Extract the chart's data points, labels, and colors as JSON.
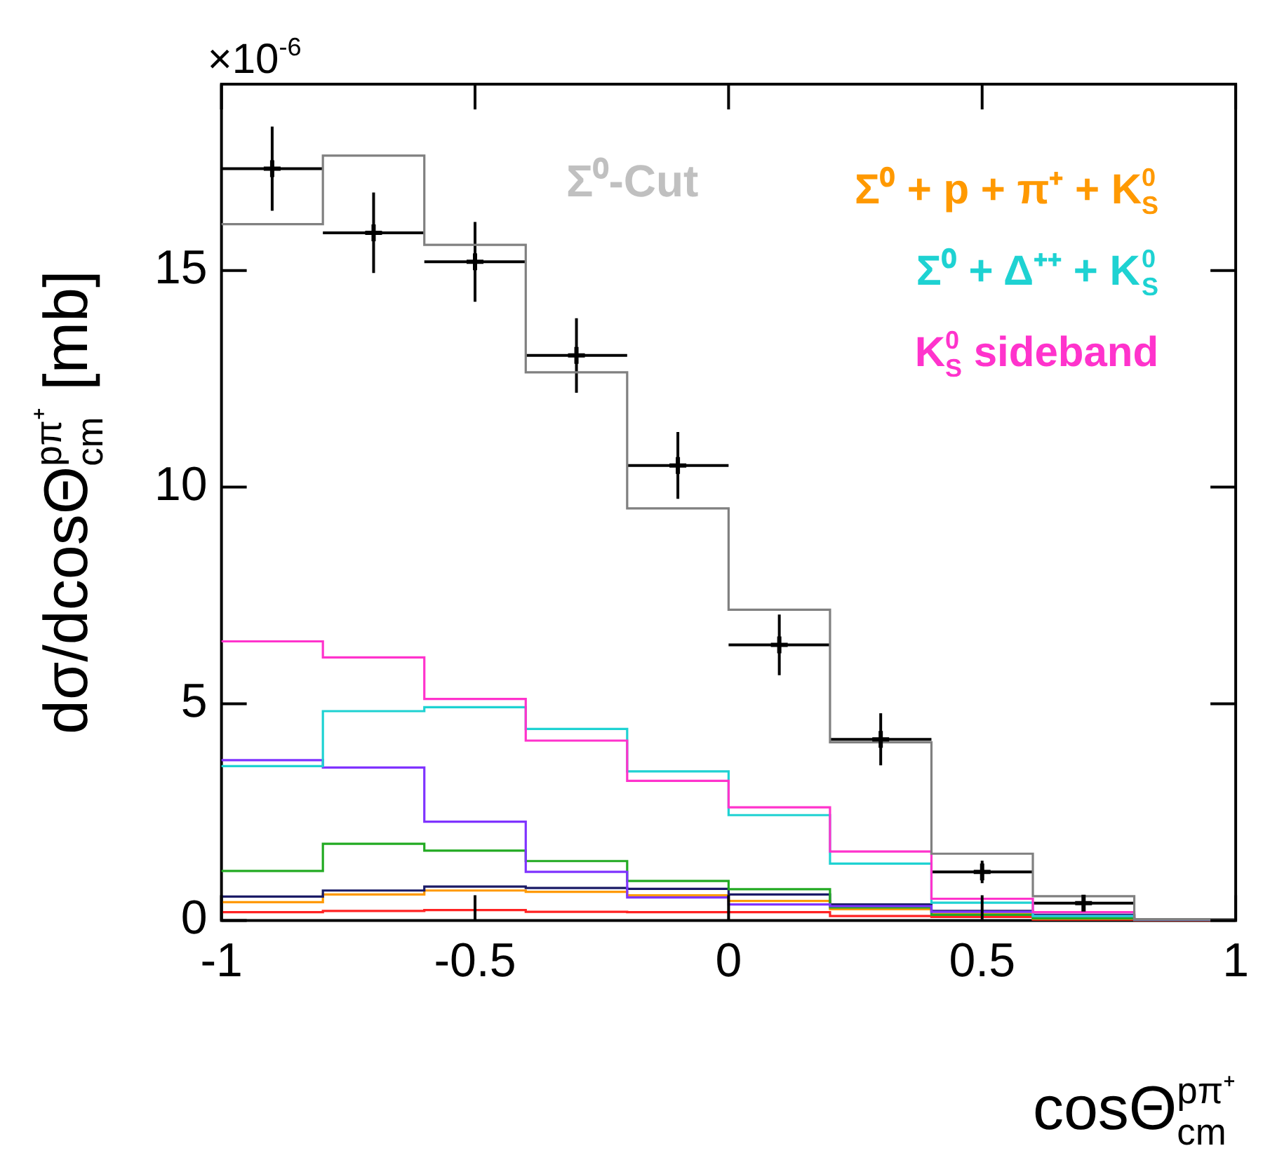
{
  "chart_data": {
    "type": "histogram",
    "xlabel": "cosΘ$_{cm}$$^{pπ⁺}$",
    "ylabel": "dσ/dcosΘ$_{cm}$$^{pπ⁺}$ [mb]",
    "annotations": [
      "×10$^{-6}$",
      "Σ⁰-Cut"
    ],
    "bins": [
      -1,
      -0.8,
      -0.6,
      -0.4,
      -0.2,
      0,
      0.2,
      0.4,
      0.6,
      0.8,
      1
    ],
    "xlim": [
      -1,
      1
    ],
    "xticks": [
      -1,
      -0.5,
      0,
      0.5,
      1
    ],
    "ylim": [
      0,
      19.3
    ],
    "yticks": [
      0,
      5,
      10,
      15
    ],
    "grid": false,
    "legend": "top right",
    "marker": "cross",
    "line_style": "solid",
    "series": [
      {
        "color": "#808080",
        "values": [
          16.07,
          17.65,
          15.59,
          12.65,
          9.51,
          7.17,
          4.11,
          1.54,
          0.56,
          0.03
        ]
      },
      {
        "color": "#ff33cc",
        "name": "K$_{S}$$^{0}$ sideband",
        "values": [
          6.44,
          6.07,
          5.11,
          4.15,
          3.22,
          2.61,
          1.59,
          0.5,
          0.19,
          0.03
        ]
      },
      {
        "color": "#1ed2d2",
        "name": "Σ⁰ + Δ⁺⁺ + K$_{S}$$^{0}$",
        "values": [
          3.56,
          4.83,
          4.92,
          4.42,
          3.44,
          2.43,
          1.31,
          0.41,
          0.1,
          0.02
        ]
      },
      {
        "color": "#7f33ff",
        "values": [
          3.7,
          3.53,
          2.28,
          1.12,
          0.53,
          0.37,
          0.33,
          0.2,
          0.1,
          0.02
        ]
      },
      {
        "color": "#22aa22",
        "values": [
          1.14,
          1.77,
          1.61,
          1.37,
          0.91,
          0.72,
          0.3,
          0.13,
          0.05,
          0.02
        ]
      },
      {
        "color": "#1a1a66",
        "values": [
          0.55,
          0.69,
          0.78,
          0.75,
          0.73,
          0.6,
          0.37,
          0.22,
          0.13,
          0.02
        ]
      },
      {
        "color": "#ff9900",
        "name": "Σ⁰ + p + π⁺ + K$_{S}$$^{0}$",
        "values": [
          0.42,
          0.6,
          0.69,
          0.66,
          0.58,
          0.45,
          0.26,
          0.15,
          0.04,
          0.02
        ]
      },
      {
        "color": "#ff2222",
        "values": [
          0.19,
          0.22,
          0.24,
          0.2,
          0.19,
          0.19,
          0.1,
          0.08,
          0.02,
          0.01
        ]
      },
      {
        "type": "scatter",
        "color": "#000000",
        "x": [
          -0.9,
          -0.7,
          -0.5,
          -0.3,
          -0.1,
          0.1,
          0.3,
          0.5,
          0.7
        ],
        "values": [
          17.35,
          15.87,
          15.2,
          13.04,
          10.5,
          6.36,
          4.18,
          1.12,
          0.4
        ],
        "errors": [
          0.97,
          0.93,
          0.92,
          0.86,
          0.77,
          0.7,
          0.6,
          0.26,
          0.16
        ],
        "xerrors": [
          0.1,
          0.1,
          0.1,
          0.1,
          0.1,
          0.1,
          0.1,
          0.1,
          0.1
        ]
      }
    ]
  }
}
